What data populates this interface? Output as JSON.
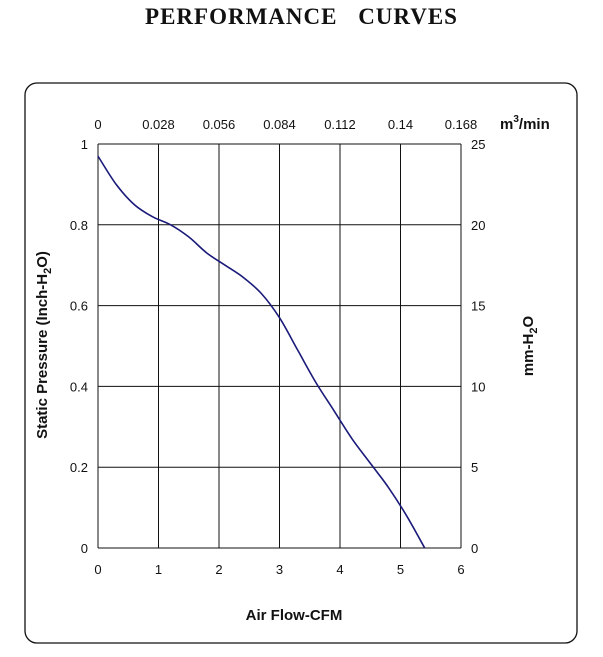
{
  "page": {
    "title": "PERFORMANCE    CURVES"
  },
  "chart_data": {
    "type": "line",
    "title": "PERFORMANCE    CURVES",
    "xlabel": "Air Flow-CFM",
    "ylabel_left_main": "Static Pressure (Inch-H",
    "ylabel_left_sub": "2",
    "ylabel_left_end": "O)",
    "ylabel_right_main": "mm-H",
    "ylabel_right_sub": "2",
    "ylabel_right_end": "O",
    "top_axis_unit_main": "m",
    "top_axis_unit_sup": "3",
    "top_axis_unit_end": "/min",
    "xlim": [
      0,
      6
    ],
    "ylim": [
      0,
      1
    ],
    "x_ticks": [
      "0",
      "1",
      "2",
      "3",
      "4",
      "5",
      "6"
    ],
    "y_ticks_left": [
      "0",
      "0.2",
      "0.4",
      "0.6",
      "0.8",
      "1"
    ],
    "top_ticks": [
      "0",
      "0.028",
      "0.056",
      "0.084",
      "0.112",
      "0.14",
      "0.168"
    ],
    "y_ticks_right": [
      "0",
      "5",
      "10",
      "15",
      "20",
      "25"
    ],
    "grid": true,
    "line_color": "#1a1a7a",
    "series": [
      {
        "x": [
          0,
          0.3,
          0.6,
          0.9,
          1.2,
          1.5,
          1.8,
          2.1,
          2.4,
          2.7,
          3.0,
          3.3,
          3.6,
          3.9,
          4.2,
          4.5,
          4.8,
          5.1,
          5.4
        ],
        "y": [
          0.97,
          0.9,
          0.85,
          0.82,
          0.8,
          0.77,
          0.73,
          0.7,
          0.67,
          0.63,
          0.57,
          0.49,
          0.41,
          0.34,
          0.27,
          0.21,
          0.15,
          0.08,
          0.0
        ]
      }
    ]
  }
}
